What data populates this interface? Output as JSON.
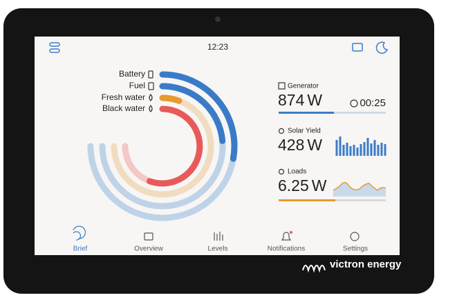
{
  "status_bar": {
    "time": "12:23"
  },
  "tanks": [
    {
      "label": "Battery"
    },
    {
      "label": "Fuel"
    },
    {
      "label": "Fresh water"
    },
    {
      "label": "Black water"
    }
  ],
  "generator": {
    "title": "Generator",
    "value": "874",
    "unit": "W",
    "timer": "00:25"
  },
  "solar": {
    "title": "Solar Yield",
    "value": "428",
    "unit": "W"
  },
  "loads": {
    "title": "Loads",
    "value": "6.25",
    "unit": "W"
  },
  "nav": [
    {
      "label": "Brief"
    },
    {
      "label": "Overview"
    },
    {
      "label": "Levels"
    },
    {
      "label": "Notifications"
    },
    {
      "label": "Settings"
    }
  ],
  "brand": "victron energy"
}
